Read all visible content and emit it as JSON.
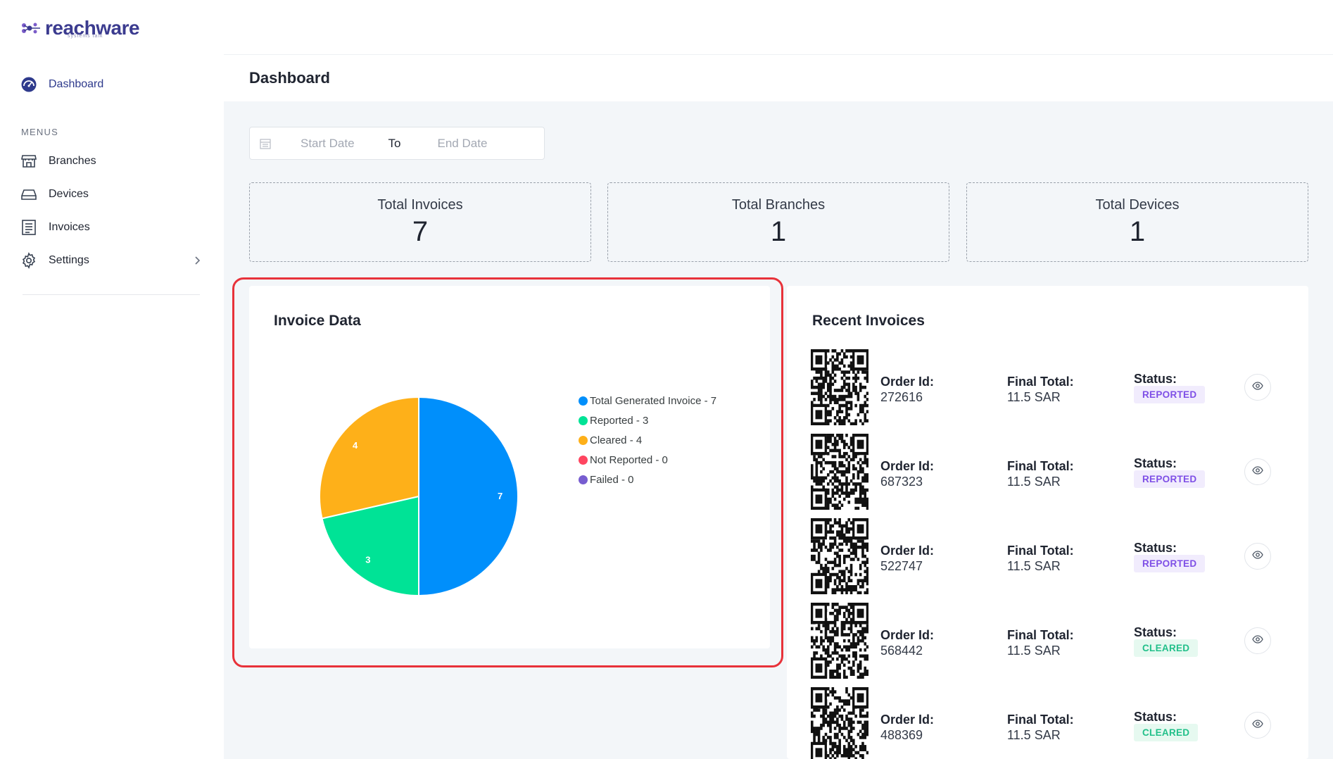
{
  "brand": {
    "name": "reachware",
    "tagline": "systems talk"
  },
  "sidebar": {
    "dashboard_label": "Dashboard",
    "menus_label": "MENUS",
    "items": [
      {
        "label": "Branches",
        "icon": "store-icon"
      },
      {
        "label": "Devices",
        "icon": "device-icon"
      },
      {
        "label": "Invoices",
        "icon": "invoice-icon"
      },
      {
        "label": "Settings",
        "icon": "gear-icon"
      }
    ]
  },
  "header": {
    "title": "Dashboard"
  },
  "date_range": {
    "start_placeholder": "Start Date",
    "to_label": "To",
    "end_placeholder": "End Date"
  },
  "stats": [
    {
      "label": "Total Invoices",
      "value": "7"
    },
    {
      "label": "Total Branches",
      "value": "1"
    },
    {
      "label": "Total Devices",
      "value": "1"
    }
  ],
  "invoice_card": {
    "title": "Invoice Data"
  },
  "chart_data": {
    "type": "pie",
    "title": "Invoice Data",
    "slices": [
      {
        "label": "Total Generated Invoice",
        "value": 7,
        "color": "#008ffb"
      },
      {
        "label": "Reported",
        "value": 3,
        "color": "#00e396"
      },
      {
        "label": "Cleared",
        "value": 4,
        "color": "#feb019"
      },
      {
        "label": "Not Reported",
        "value": 0,
        "color": "#ff4560"
      },
      {
        "label": "Failed",
        "value": 0,
        "color": "#775dd0"
      }
    ],
    "legend": [
      "Total Generated Invoice - 7",
      "Reported - 3",
      "Cleared - 4",
      "Not Reported - 0",
      "Failed - 0"
    ],
    "legend_position": "right"
  },
  "recent": {
    "title": "Recent Invoices",
    "order_label": "Order Id:",
    "total_label": "Final Total:",
    "status_label": "Status:",
    "rows": [
      {
        "order_id": "272616",
        "total": "11.5 SAR",
        "status": "REPORTED"
      },
      {
        "order_id": "687323",
        "total": "11.5 SAR",
        "status": "REPORTED"
      },
      {
        "order_id": "522747",
        "total": "11.5 SAR",
        "status": "REPORTED"
      },
      {
        "order_id": "568442",
        "total": "11.5 SAR",
        "status": "CLEARED"
      },
      {
        "order_id": "488369",
        "total": "11.5 SAR",
        "status": "CLEARED"
      }
    ]
  },
  "colors": {
    "accent": "#2e3a8c",
    "reported_bg": "#f1ecfd",
    "reported_fg": "#7e4fe6",
    "cleared_bg": "#e6f9f0",
    "cleared_fg": "#22c08a",
    "highlight": "#e8323a"
  }
}
